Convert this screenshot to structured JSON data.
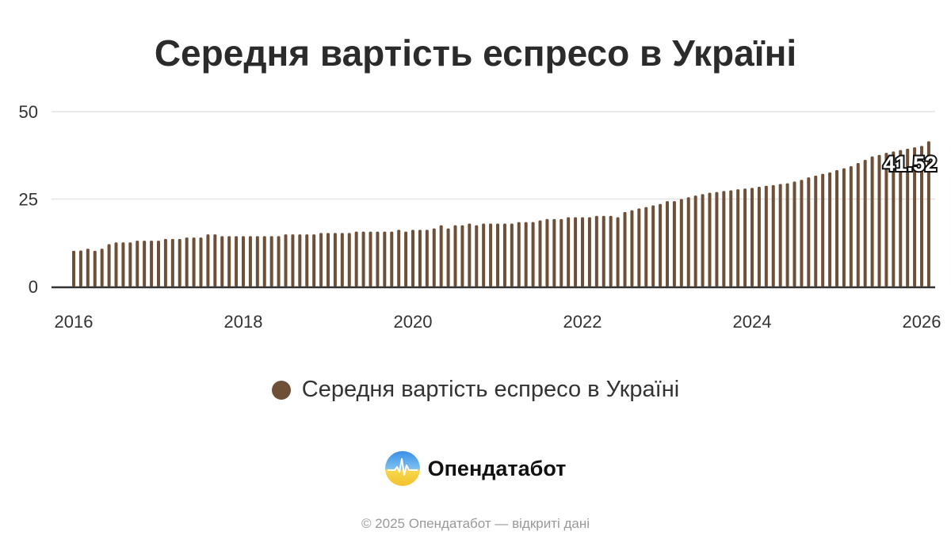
{
  "colors": {
    "bar": "#6e4f37",
    "grid": "#e3e3e3",
    "axis": "#333333"
  },
  "chart_data": {
    "type": "bar",
    "title": "Середня вартість еспресо в Україні",
    "xlabel": "",
    "ylabel": "",
    "ylim": [
      0,
      50
    ],
    "yticks": [
      "0",
      "25",
      "50"
    ],
    "xticks": [
      "2016",
      "2018",
      "2020",
      "2022",
      "2024",
      "2026"
    ],
    "x_start": "2016-01",
    "x_frequency": "monthly",
    "grid": true,
    "legend_position": "bottom",
    "series": [
      {
        "name": "Середня вартість еспресо в Україні",
        "values": [
          10.2,
          10.3,
          10.8,
          10.2,
          10.8,
          12.1,
          12.6,
          12.6,
          12.6,
          13.1,
          13.1,
          13.1,
          13.1,
          13.6,
          13.6,
          13.6,
          14.0,
          14.0,
          14.0,
          14.9,
          14.9,
          14.4,
          14.4,
          14.4,
          14.4,
          14.4,
          14.4,
          14.4,
          14.4,
          14.4,
          14.9,
          14.9,
          14.9,
          14.9,
          14.9,
          15.3,
          15.3,
          15.3,
          15.3,
          15.3,
          15.7,
          15.7,
          15.7,
          15.7,
          15.7,
          15.7,
          16.2,
          15.7,
          16.2,
          16.2,
          16.2,
          16.6,
          17.5,
          16.6,
          17.5,
          17.5,
          18.0,
          17.5,
          18.0,
          18.0,
          18.0,
          18.0,
          18.0,
          18.4,
          18.4,
          18.4,
          18.9,
          19.3,
          19.3,
          19.3,
          19.8,
          19.8,
          19.8,
          19.8,
          20.2,
          20.2,
          20.2,
          19.8,
          21.3,
          21.8,
          22.3,
          22.7,
          23.2,
          23.6,
          24.4,
          24.4,
          25.0,
          25.5,
          26.0,
          26.4,
          26.8,
          27.0,
          27.3,
          27.5,
          27.8,
          28.0,
          28.2,
          28.5,
          28.8,
          29.0,
          29.3,
          29.5,
          30.0,
          30.5,
          31.2,
          31.7,
          32.2,
          32.6,
          33.3,
          33.8,
          34.4,
          35.3,
          36.2,
          37.2,
          37.6,
          38.2,
          38.6,
          39.0,
          39.4,
          39.8,
          40.2,
          41.52
        ]
      }
    ],
    "last_value_label": "41.52"
  },
  "legend": {
    "label": "Середня вартість еспресо в Україні"
  },
  "brand": {
    "name": "Опендатабот",
    "icon": "opendatabot-logo-icon"
  },
  "footer": {
    "text": "© 2025 Опендатабот — відкриті дані"
  }
}
